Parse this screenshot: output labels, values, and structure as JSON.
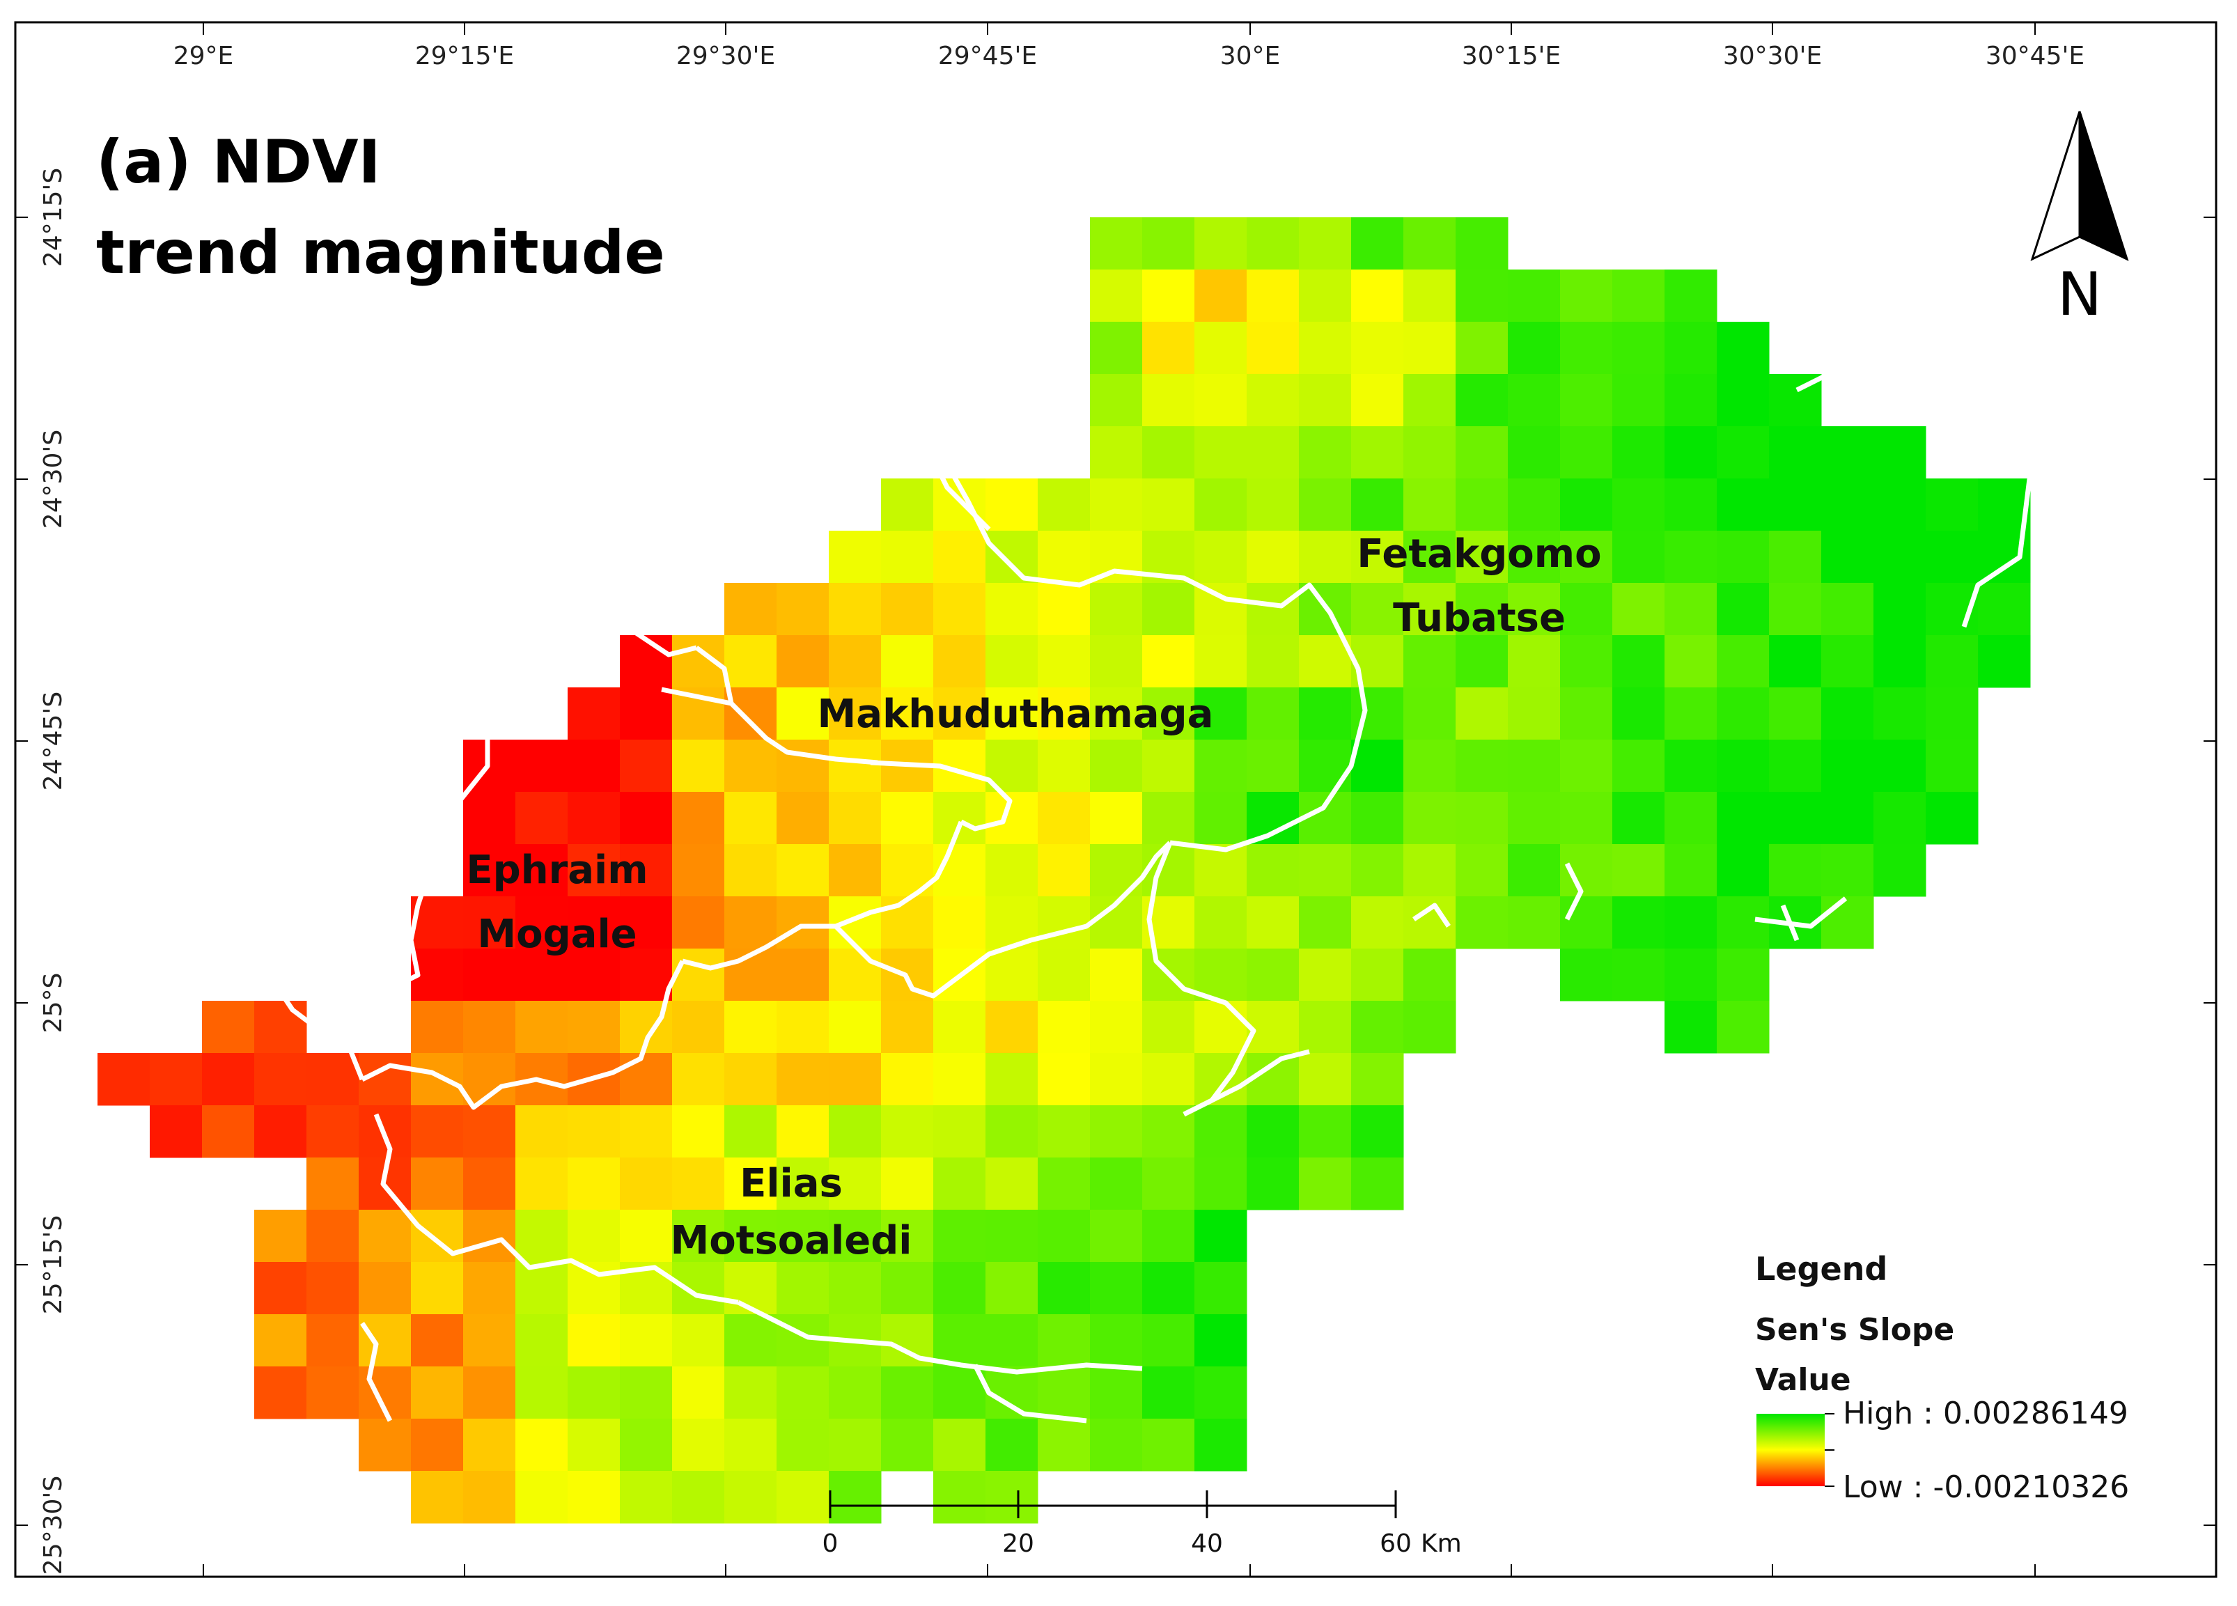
{
  "map": {
    "title_line1": "(a) NDVI",
    "title_line2": "trend magnitude",
    "north_label": "N",
    "lon_ticks": [
      "29°E",
      "29°15'E",
      "29°30'E",
      "29°45'E",
      "30°E",
      "30°15'E",
      "30°30'E",
      "30°45'E"
    ],
    "lat_ticks": [
      "24°15'S",
      "24°30'S",
      "24°45'S",
      "25°S",
      "25°15'S",
      "25°30'S"
    ],
    "districts": [
      {
        "name_lines": [
          "Fetakgomo",
          "Tubatse"
        ]
      },
      {
        "name_lines": [
          "Makhuduthamaga"
        ]
      },
      {
        "name_lines": [
          "Ephraim",
          "Mogale"
        ]
      },
      {
        "name_lines": [
          "Elias",
          "Motsoaledi"
        ]
      }
    ],
    "scale_bar": {
      "labels": [
        "0",
        "20",
        "40",
        "60"
      ],
      "unit": "Km"
    },
    "legend": {
      "heading": "Legend",
      "subtitle_line1": "Sen's Slope",
      "subtitle_line2": "Value",
      "high_label": "High : 0.00286149",
      "low_label": "Low : -0.00210326",
      "high_color": "#00e600",
      "mid_color": "#ffff00",
      "low_color": "#ff0000"
    },
    "colors": {
      "boundary": "#ffffff",
      "frame": "#000000"
    }
  }
}
